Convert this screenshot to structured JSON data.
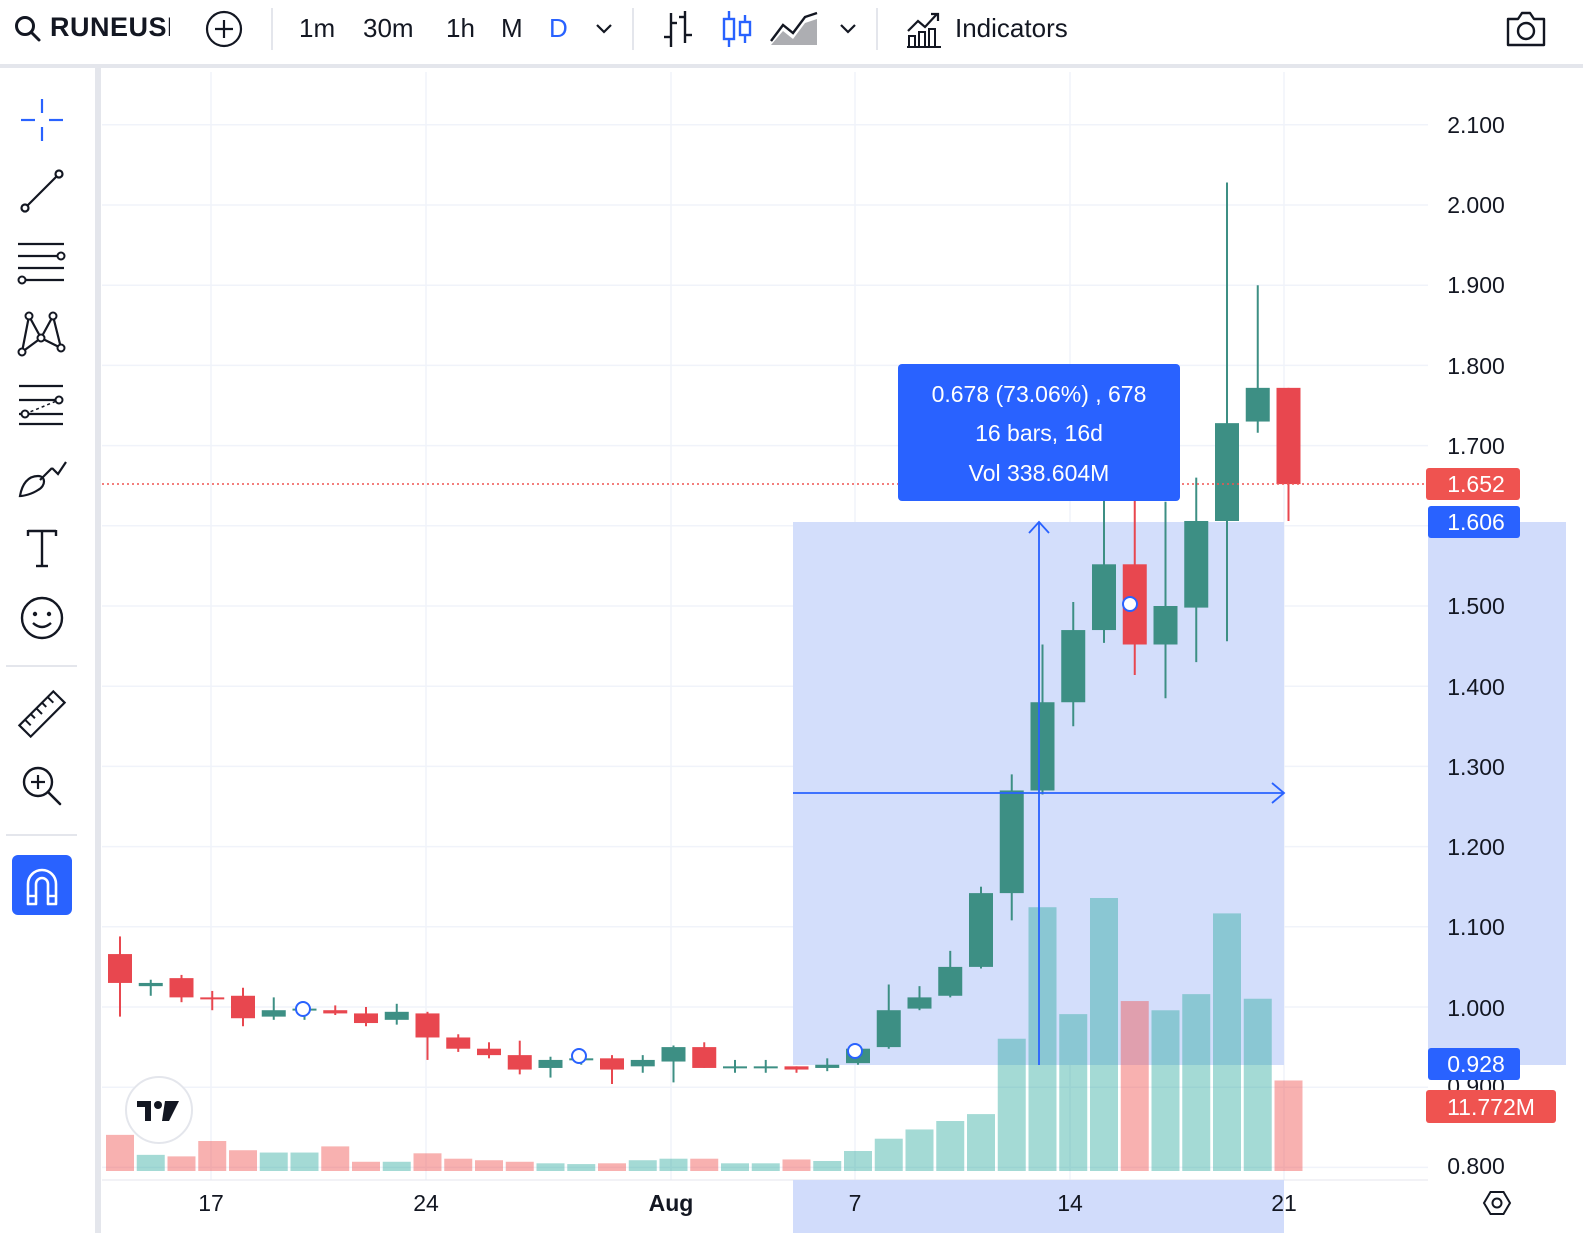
{
  "toolbar": {
    "symbol": "RUNEUSD",
    "intervals": [
      "1m",
      "30m",
      "1h",
      "M",
      "D"
    ],
    "active_interval": "D",
    "indicators_label": "Indicators",
    "icons": [
      "search-icon",
      "add-symbol-icon",
      "chevron-down-icon",
      "bar-chart-type-icon",
      "candle-chart-type-icon",
      "area-chart-type-icon",
      "indicators-icon",
      "camera-icon"
    ]
  },
  "left_tools": [
    "crosshair-icon",
    "trendline-icon",
    "fib-levels-icon",
    "pattern-icon",
    "forecast-icon",
    "brush-icon",
    "text-icon",
    "emoji-icon",
    "ruler-icon",
    "zoom-in-icon",
    "magnet-icon"
  ],
  "colors": {
    "up": "#26a69a",
    "up_dark": "#3d8f84",
    "down": "#ef5350",
    "accent": "#2962ff",
    "grid": "#f0f3fa",
    "selection": "#d1dcfb"
  },
  "measure": {
    "line1": "0.678 (73.06%) , 678",
    "line2": "16 bars, 16d",
    "line3": "Vol 338.604M"
  },
  "price_axis": {
    "labels": [
      "2.100",
      "2.000",
      "1.900",
      "1.800",
      "1.700",
      "1.500",
      "1.400",
      "1.300",
      "1.200",
      "1.100",
      "1.000",
      "0.900",
      "0.800"
    ],
    "last_price_tag": "1.652",
    "range_high_tag": "1.606",
    "range_low_tag": "0.928",
    "volume_tag": "11.772M"
  },
  "time_axis": {
    "labels": [
      "17",
      "24",
      "Aug",
      "7",
      "14",
      "21"
    ]
  },
  "chart_data": {
    "type": "candlestick",
    "price_scale": {
      "min": 0.8,
      "max": 2.1
    },
    "candles": [
      {
        "o": 1.066,
        "h": 1.088,
        "l": 0.988,
        "c": 1.03
      },
      {
        "o": 1.026,
        "h": 1.034,
        "l": 1.014,
        "c": 1.03
      },
      {
        "o": 1.036,
        "h": 1.04,
        "l": 1.006,
        "c": 1.012
      },
      {
        "o": 1.012,
        "h": 1.02,
        "l": 0.996,
        "c": 1.01
      },
      {
        "o": 1.014,
        "h": 1.024,
        "l": 0.976,
        "c": 0.986
      },
      {
        "o": 0.988,
        "h": 1.012,
        "l": 0.984,
        "c": 0.996
      },
      {
        "o": 0.998,
        "h": 1.0,
        "l": 0.984,
        "c": 0.998
      },
      {
        "o": 0.996,
        "h": 1.002,
        "l": 0.99,
        "c": 0.992
      },
      {
        "o": 0.992,
        "h": 1.0,
        "l": 0.976,
        "c": 0.98
      },
      {
        "o": 0.984,
        "h": 1.004,
        "l": 0.978,
        "c": 0.994
      },
      {
        "o": 0.992,
        "h": 0.994,
        "l": 0.934,
        "c": 0.962
      },
      {
        "o": 0.962,
        "h": 0.966,
        "l": 0.944,
        "c": 0.948
      },
      {
        "o": 0.948,
        "h": 0.956,
        "l": 0.936,
        "c": 0.94
      },
      {
        "o": 0.94,
        "h": 0.958,
        "l": 0.916,
        "c": 0.922
      },
      {
        "o": 0.924,
        "h": 0.938,
        "l": 0.912,
        "c": 0.934
      },
      {
        "o": 0.936,
        "h": 0.94,
        "l": 0.928,
        "c": 0.936
      },
      {
        "o": 0.936,
        "h": 0.94,
        "l": 0.904,
        "c": 0.922
      },
      {
        "o": 0.926,
        "h": 0.94,
        "l": 0.918,
        "c": 0.934
      },
      {
        "o": 0.932,
        "h": 0.952,
        "l": 0.906,
        "c": 0.95
      },
      {
        "o": 0.95,
        "h": 0.956,
        "l": 0.924,
        "c": 0.924
      },
      {
        "o": 0.924,
        "h": 0.934,
        "l": 0.918,
        "c": 0.926
      },
      {
        "o": 0.924,
        "h": 0.934,
        "l": 0.918,
        "c": 0.926
      },
      {
        "o": 0.926,
        "h": 0.926,
        "l": 0.918,
        "c": 0.922
      },
      {
        "o": 0.924,
        "h": 0.936,
        "l": 0.92,
        "c": 0.928
      },
      {
        "o": 0.93,
        "h": 0.95,
        "l": 0.928,
        "c": 0.948
      },
      {
        "o": 0.95,
        "h": 1.028,
        "l": 0.948,
        "c": 0.996
      },
      {
        "o": 0.998,
        "h": 1.026,
        "l": 0.996,
        "c": 1.012
      },
      {
        "o": 1.014,
        "h": 1.07,
        "l": 1.012,
        "c": 1.05
      },
      {
        "o": 1.05,
        "h": 1.15,
        "l": 1.048,
        "c": 1.142
      },
      {
        "o": 1.142,
        "h": 1.29,
        "l": 1.108,
        "c": 1.27
      },
      {
        "o": 1.27,
        "h": 1.452,
        "l": 1.265,
        "c": 1.38
      },
      {
        "o": 1.38,
        "h": 1.505,
        "l": 1.35,
        "c": 1.47
      },
      {
        "o": 1.47,
        "h": 1.64,
        "l": 1.454,
        "c": 1.552
      },
      {
        "o": 1.552,
        "h": 1.64,
        "l": 1.414,
        "c": 1.452
      },
      {
        "o": 1.452,
        "h": 1.63,
        "l": 1.385,
        "c": 1.5
      },
      {
        "o": 1.498,
        "h": 1.66,
        "l": 1.43,
        "c": 1.606
      },
      {
        "o": 1.606,
        "h": 2.028,
        "l": 1.456,
        "c": 1.728
      },
      {
        "o": 1.73,
        "h": 1.9,
        "l": 1.716,
        "c": 1.772
      },
      {
        "o": 1.772,
        "h": 1.772,
        "l": 1.606,
        "c": 1.652
      }
    ],
    "volume_M": [
      4.7,
      2.1,
      1.9,
      3.9,
      2.7,
      2.4,
      2.4,
      3.2,
      1.2,
      1.2,
      2.3,
      1.6,
      1.4,
      1.2,
      1.0,
      0.9,
      1.0,
      1.4,
      1.6,
      1.6,
      1.0,
      1.0,
      1.5,
      1.3,
      2.6,
      4.2,
      5.4,
      6.5,
      7.4,
      17.2,
      34.3,
      20.4,
      35.5,
      22.1,
      20.9,
      23.0,
      33.5,
      22.4,
      11.772
    ],
    "volume_max_M": 35.5,
    "measured_range": {
      "from_price": 0.928,
      "to_price": 1.606,
      "change": 0.678,
      "change_pct": 73.06,
      "bars": 16
    },
    "last_price": 1.652
  }
}
